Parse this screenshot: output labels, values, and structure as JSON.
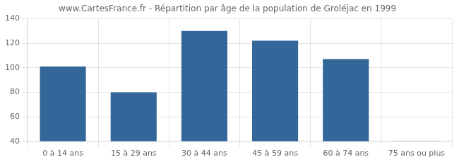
{
  "chart_data": {
    "type": "bar",
    "title": "www.CartesFrance.fr - Répartition par âge de la population de Groléjac en 1999",
    "categories": [
      "0 à 14 ans",
      "15 à 29 ans",
      "30 à 44 ans",
      "45 à 59 ans",
      "60 à 74 ans",
      "75 ans ou plus"
    ],
    "values": [
      101,
      80,
      130,
      122,
      107,
      40
    ],
    "color": "#336699",
    "ylim": [
      40,
      140
    ],
    "yticks": [
      40,
      60,
      80,
      100,
      120,
      140
    ],
    "grid": true
  }
}
